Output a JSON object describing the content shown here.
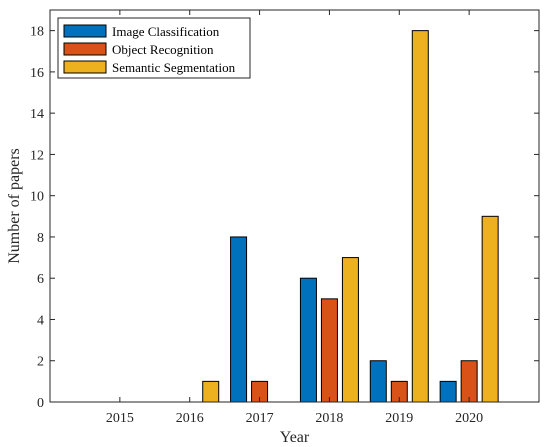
{
  "chart_data": {
    "type": "bar",
    "categories": [
      "2015",
      "2016",
      "2017",
      "2018",
      "2019",
      "2020"
    ],
    "series": [
      {
        "name": "Image Classification",
        "values": [
          0,
          0,
          8,
          6,
          2,
          1
        ],
        "color": "#0072BD"
      },
      {
        "name": "Object Recognition",
        "values": [
          0,
          0,
          1,
          5,
          1,
          2
        ],
        "color": "#D95319"
      },
      {
        "name": "Semantic Segmentation",
        "values": [
          0,
          1,
          0,
          7,
          18,
          9
        ],
        "color": "#EDB120"
      }
    ],
    "xlabel": "Year",
    "ylabel": "Number of papers",
    "ylim": [
      0,
      19
    ],
    "yticks": [
      0,
      2,
      4,
      6,
      8,
      10,
      12,
      14,
      16,
      18
    ],
    "grid": false,
    "legend_position": "top-left"
  }
}
